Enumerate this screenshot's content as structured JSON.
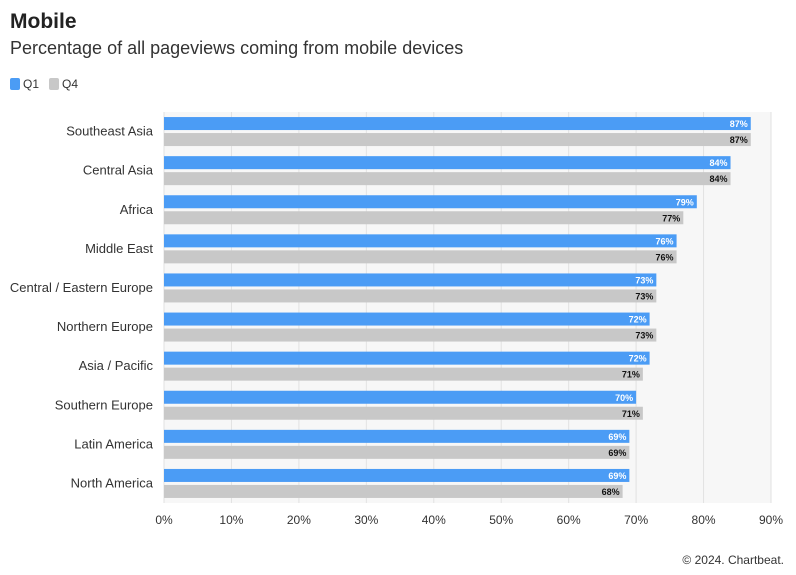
{
  "header": {
    "title": "Mobile",
    "subtitle": "Percentage of all pageviews coming from mobile devices"
  },
  "footer": {
    "copyright": "© 2024. Chartbeat."
  },
  "colors": {
    "q1": "#4b9cf5",
    "q4": "#c8c8c8",
    "plot_bg": "#f7f7f7",
    "grid": "#e2e2e2"
  },
  "chart_data": {
    "type": "bar",
    "orientation": "horizontal",
    "categories": [
      "Southeast Asia",
      "Central Asia",
      "Africa",
      "Middle East",
      "Central / Eastern Europe",
      "Northern Europe",
      "Asia / Pacific",
      "Southern Europe",
      "Latin America",
      "North America"
    ],
    "series": [
      {
        "name": "Q1",
        "values": [
          87,
          84,
          79,
          76,
          73,
          72,
          72,
          70,
          69,
          69
        ]
      },
      {
        "name": "Q4",
        "values": [
          87,
          84,
          77,
          76,
          73,
          73,
          71,
          71,
          69,
          68
        ]
      }
    ],
    "xlim": [
      0,
      90
    ],
    "xticks": [
      0,
      10,
      20,
      30,
      40,
      50,
      60,
      70,
      80,
      90
    ],
    "tick_suffix": "%",
    "value_suffix": "%",
    "legend_position": "top-left",
    "grid": true
  }
}
